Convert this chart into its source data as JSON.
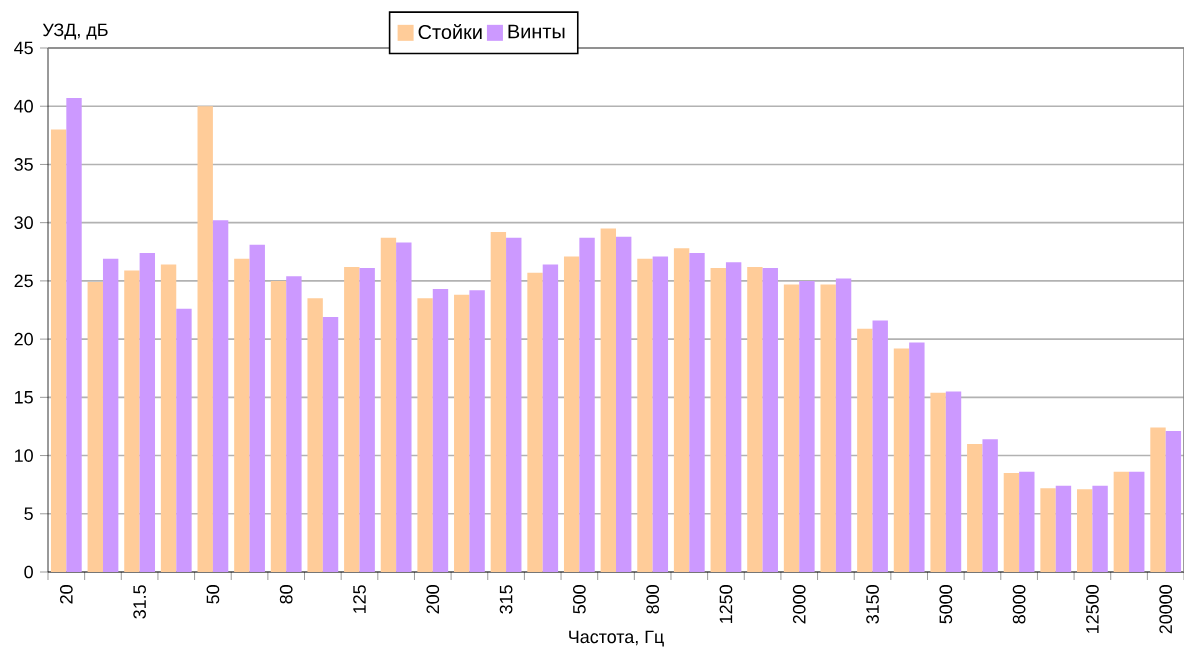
{
  "chart_data": {
    "type": "bar",
    "xlabel": "Частота, Гц",
    "ylabel": "УЗД, дБ",
    "categories": [
      "20",
      null,
      "31.5",
      null,
      "50",
      null,
      "80",
      null,
      "125",
      null,
      "200",
      null,
      "315",
      null,
      "500",
      null,
      "800",
      null,
      "1250",
      null,
      "2000",
      null,
      "3150",
      null,
      "5000",
      null,
      "8000",
      null,
      "12500",
      null,
      "20000"
    ],
    "series": [
      {
        "name": "Стойки",
        "color": "#ffcc99",
        "values": [
          38.0,
          24.9,
          25.9,
          26.4,
          40.0,
          26.9,
          25.0,
          23.5,
          26.2,
          28.7,
          23.5,
          23.8,
          29.2,
          25.7,
          27.1,
          29.5,
          26.9,
          27.8,
          26.1,
          26.2,
          24.7,
          24.7,
          20.9,
          19.2,
          15.4,
          11.0,
          8.5,
          7.2,
          7.1,
          8.6,
          12.4
        ]
      },
      {
        "name": "Винты",
        "color": "#cc99ff",
        "values": [
          40.7,
          26.9,
          27.4,
          22.6,
          30.2,
          28.1,
          25.4,
          21.9,
          26.1,
          28.3,
          24.3,
          24.2,
          28.7,
          26.4,
          28.7,
          28.8,
          27.1,
          27.4,
          26.6,
          26.1,
          25.0,
          25.2,
          21.6,
          19.7,
          15.5,
          11.4,
          8.6,
          7.4,
          7.4,
          8.6,
          12.1
        ]
      }
    ],
    "ylim": [
      0,
      45
    ],
    "yticks": [
      0,
      5,
      10,
      15,
      20,
      25,
      30,
      35,
      40,
      45
    ],
    "grid": "y",
    "legend": "top"
  }
}
